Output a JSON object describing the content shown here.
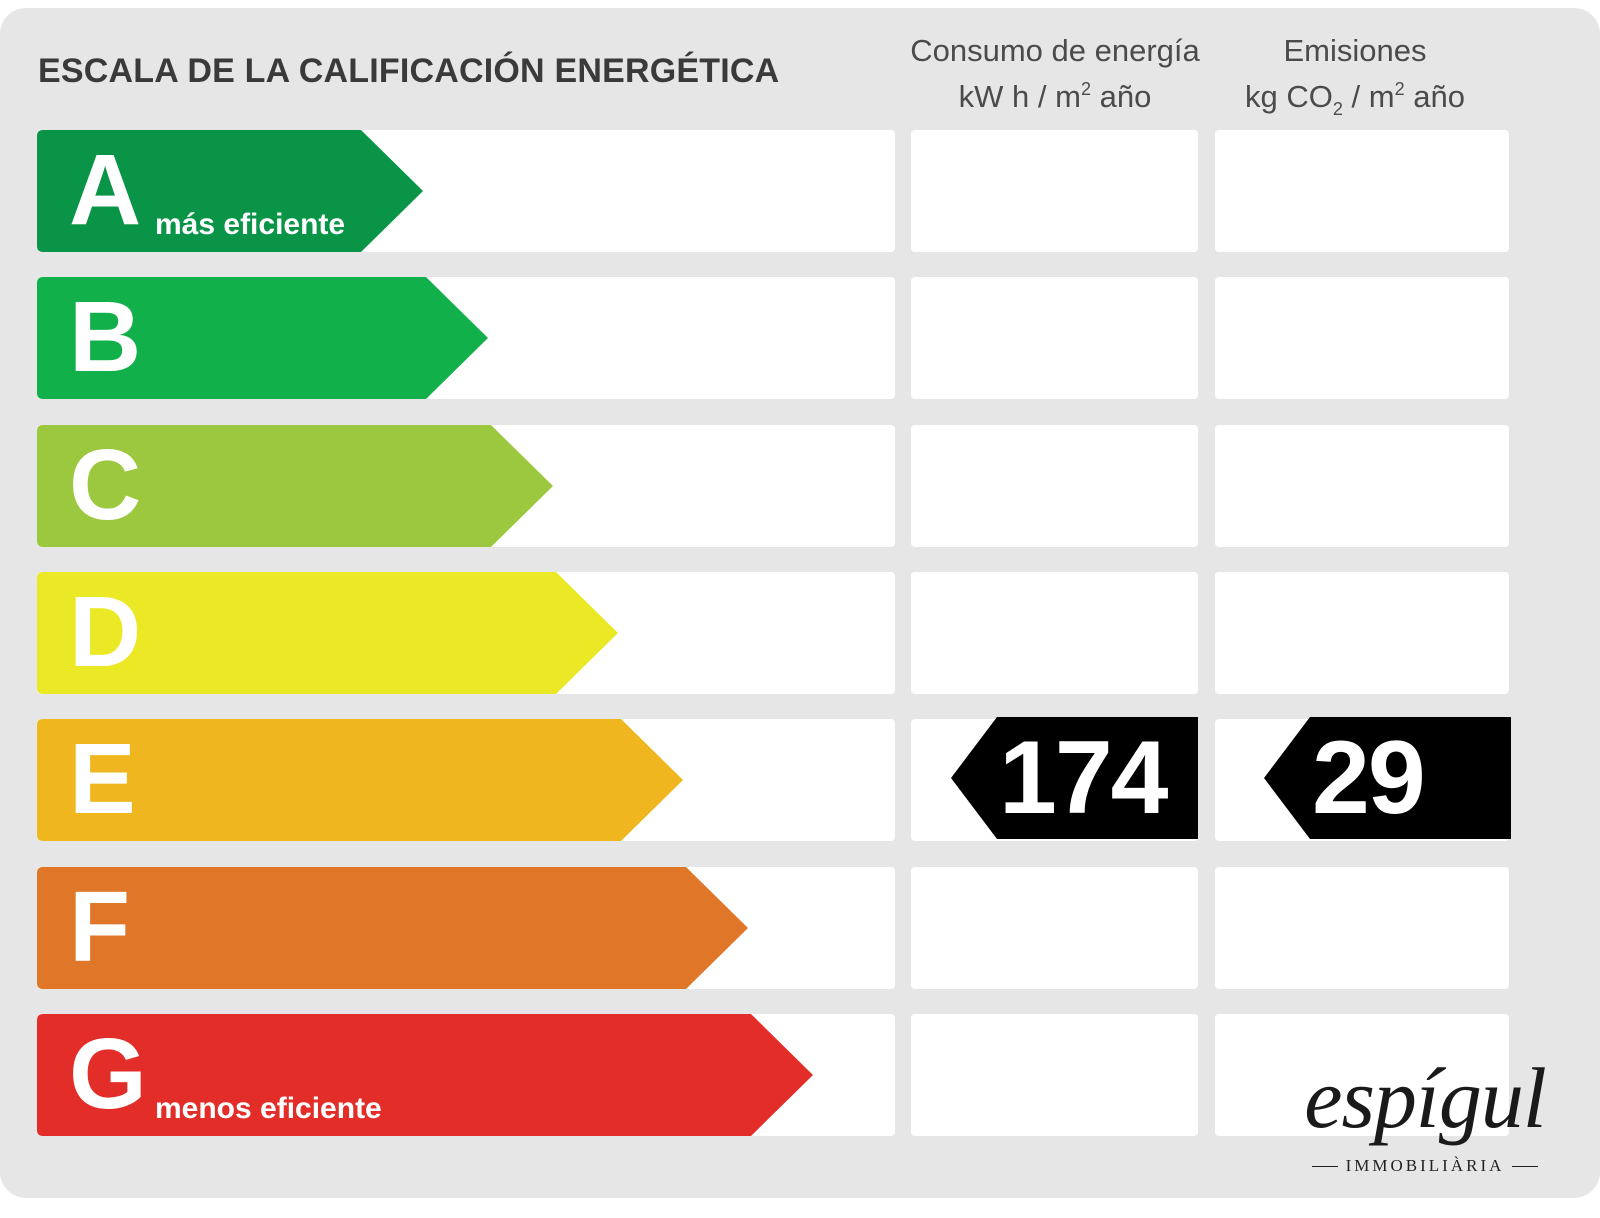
{
  "title": "ESCALA DE LA CALIFICACIÓN ENERGÉTICA",
  "columns": {
    "consumo": {
      "line1": "Consumo de energía",
      "unit_prefix": "kW h  / m",
      "unit_sup": "2",
      "unit_suffix": " año"
    },
    "emisiones": {
      "line1": "Emisiones",
      "unit_prefix": "kg CO",
      "unit_sub": "2",
      "unit_mid": "  / m",
      "unit_sup": "2",
      "unit_suffix": " año"
    }
  },
  "ratings": [
    {
      "letter": "A",
      "label": "más eficiente",
      "color": "#0a9447"
    },
    {
      "letter": "B",
      "label": "",
      "color": "#12b04a"
    },
    {
      "letter": "C",
      "label": "",
      "color": "#9bc83e"
    },
    {
      "letter": "D",
      "label": "",
      "color": "#ebe826"
    },
    {
      "letter": "E",
      "label": "",
      "color": "#efb620"
    },
    {
      "letter": "F",
      "label": "",
      "color": "#e07628"
    },
    {
      "letter": "G",
      "label": "menos eficiente",
      "color": "#e32d28"
    }
  ],
  "result": {
    "rating": "E",
    "consumo_value": "174",
    "emisiones_value": "29",
    "tag_color": "#000000"
  },
  "logo": {
    "name": "espígul",
    "tagline": "IMMOBILIÀRIA"
  }
}
